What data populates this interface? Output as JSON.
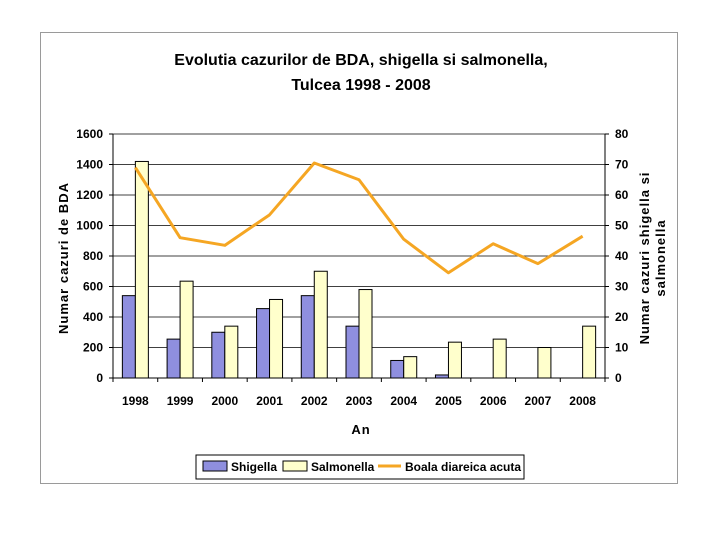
{
  "chart_data": {
    "type": "bar",
    "title_line1": "Evolutia cazurilor de BDA, shigella si salmonella,",
    "title_line2": "Tulcea 1998 - 2008",
    "xlabel": "An",
    "ylabel_left": "Numar cazuri de BDA",
    "ylabel_right_line1": "Numar cazuri shigella si",
    "ylabel_right_line2": "salmonella",
    "categories": [
      "1998",
      "1999",
      "2000",
      "2001",
      "2002",
      "2003",
      "2004",
      "2005",
      "2006",
      "2007",
      "2008"
    ],
    "ylim_left": [
      0,
      1600
    ],
    "yticks_left": [
      "0",
      "200",
      "400",
      "600",
      "800",
      "1000",
      "1200",
      "1400",
      "1600"
    ],
    "ylim_right": [
      0,
      80
    ],
    "yticks_right": [
      "0",
      "10",
      "20",
      "30",
      "40",
      "50",
      "60",
      "70",
      "80"
    ],
    "series": [
      {
        "name": "Shigella",
        "type": "bar",
        "axis": "left",
        "color": "#8f8fdf",
        "values": [
          540,
          255,
          300,
          455,
          540,
          340,
          115,
          20,
          0,
          0,
          0
        ]
      },
      {
        "name": "Salmonella",
        "type": "bar",
        "axis": "left",
        "color": "#ffffcc",
        "values": [
          1420,
          635,
          340,
          515,
          700,
          580,
          140,
          235,
          255,
          200,
          340
        ]
      },
      {
        "name": "Boala diareica acuta",
        "type": "line",
        "axis": "right",
        "color": "#f5a623",
        "values": [
          69,
          46,
          43.5,
          53.5,
          70.5,
          65,
          45.5,
          34.5,
          44,
          37.5,
          46.5
        ]
      }
    ],
    "legend_position": "bottom"
  }
}
